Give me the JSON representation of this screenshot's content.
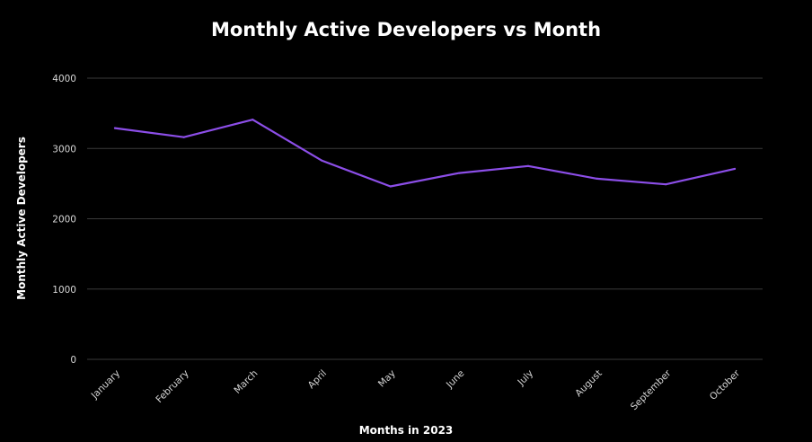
{
  "chart_data": {
    "type": "line",
    "title": "Monthly Active Developers vs Month",
    "xlabel": "Months in 2023",
    "ylabel": "Monthly Active Developers",
    "categories": [
      "January",
      "February",
      "March",
      "April",
      "May",
      "June",
      "July",
      "August",
      "September",
      "October"
    ],
    "series": [
      {
        "name": "Monthly Active Developers",
        "values": [
          3290,
          3160,
          3410,
          2830,
          2460,
          2650,
          2750,
          2570,
          2490,
          2710
        ],
        "color": "#8c4ee8"
      }
    ],
    "yticks": [
      0,
      1000,
      2000,
      3000,
      4000
    ],
    "ylim": [
      0,
      4000
    ],
    "grid": true,
    "background": "#000000"
  }
}
